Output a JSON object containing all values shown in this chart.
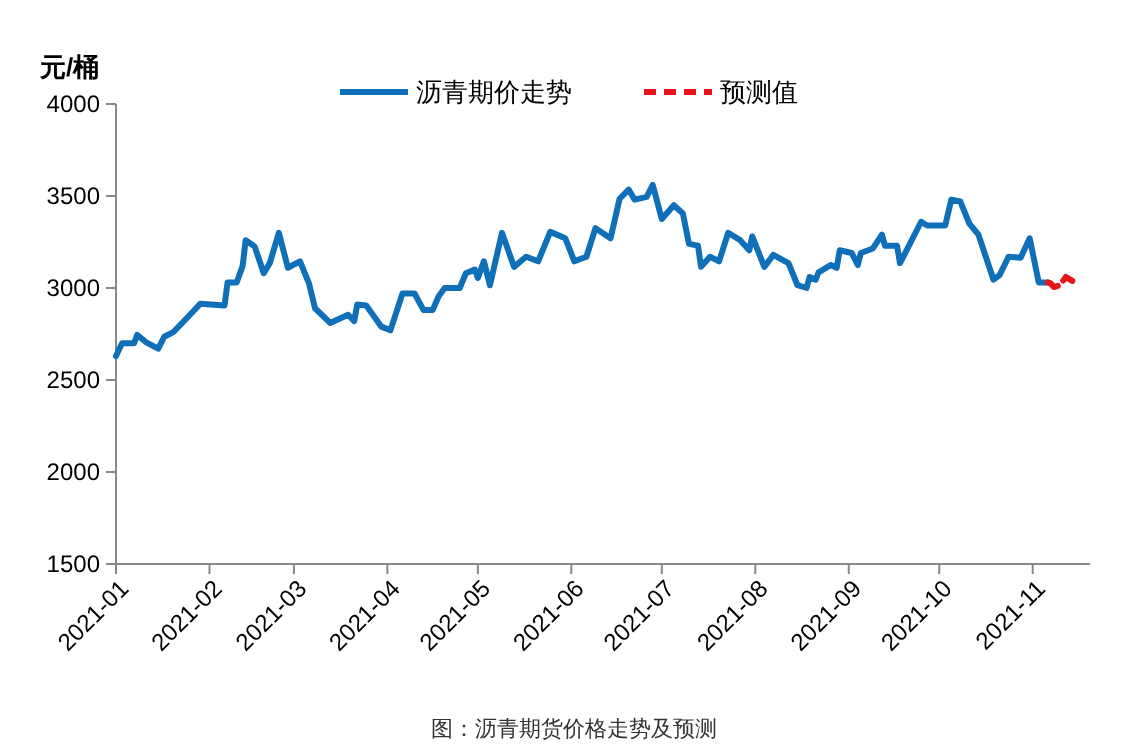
{
  "chart_data": {
    "type": "line",
    "ylabel": "元/桶",
    "annotations": [
      "图：沥青期货价格走势及预测"
    ],
    "xlim": [
      "2021-01-01",
      "2021-11-20"
    ],
    "xticks": [
      {
        "value": "2021-01-01",
        "label": "2021-01"
      },
      {
        "value": "2021-02-01",
        "label": "2021-02"
      },
      {
        "value": "2021-03-01",
        "label": "2021-03"
      },
      {
        "value": "2021-04-01",
        "label": "2021-04"
      },
      {
        "value": "2021-05-01",
        "label": "2021-05"
      },
      {
        "value": "2021-06-01",
        "label": "2021-06"
      },
      {
        "value": "2021-07-01",
        "label": "2021-07"
      },
      {
        "value": "2021-08-01",
        "label": "2021-08"
      },
      {
        "value": "2021-09-01",
        "label": "2021-09"
      },
      {
        "value": "2021-10-01",
        "label": "2021-10"
      },
      {
        "value": "2021-11-01",
        "label": "2021-11"
      }
    ],
    "ylim": [
      1500,
      4000
    ],
    "yticks": [
      1500,
      2000,
      2500,
      3000,
      3500,
      4000
    ],
    "grid": false,
    "legend": "top",
    "series": [
      {
        "name": "沥青期价走势",
        "color": "#0f6fb8",
        "line_style": "solid",
        "x": [
          "2021-01-01",
          "2021-01-03",
          "2021-01-07",
          "2021-01-08",
          "2021-01-11",
          "2021-01-15",
          "2021-01-17",
          "2021-01-20",
          "2021-01-25",
          "2021-01-29",
          "2021-02-06",
          "2021-02-07",
          "2021-02-10",
          "2021-02-12",
          "2021-02-13",
          "2021-02-16",
          "2021-02-19",
          "2021-02-21",
          "2021-02-24",
          "2021-02-27",
          "2021-03-03",
          "2021-03-06",
          "2021-03-08",
          "2021-03-13",
          "2021-03-19",
          "2021-03-21",
          "2021-03-22",
          "2021-03-25",
          "2021-03-30",
          "2021-04-02",
          "2021-04-06",
          "2021-04-10",
          "2021-04-13",
          "2021-04-16",
          "2021-04-18",
          "2021-04-20",
          "2021-04-25",
          "2021-04-27",
          "2021-04-30",
          "2021-05-01",
          "2021-05-03",
          "2021-05-05",
          "2021-05-09",
          "2021-05-13",
          "2021-05-17",
          "2021-05-21",
          "2021-05-25",
          "2021-05-30",
          "2021-06-02",
          "2021-06-06",
          "2021-06-09",
          "2021-06-14",
          "2021-06-17",
          "2021-06-20",
          "2021-06-22",
          "2021-06-26",
          "2021-06-28",
          "2021-07-01",
          "2021-07-05",
          "2021-07-08",
          "2021-07-10",
          "2021-07-13",
          "2021-07-14",
          "2021-07-17",
          "2021-07-20",
          "2021-07-23",
          "2021-07-27",
          "2021-07-30",
          "2021-07-31",
          "2021-08-04",
          "2021-08-07",
          "2021-08-12",
          "2021-08-15",
          "2021-08-18",
          "2021-08-19",
          "2021-08-21",
          "2021-08-22",
          "2021-08-26",
          "2021-08-28",
          "2021-08-29",
          "2021-09-02",
          "2021-09-04",
          "2021-09-05",
          "2021-09-09",
          "2021-09-12",
          "2021-09-13",
          "2021-09-17",
          "2021-09-18",
          "2021-09-25",
          "2021-09-27",
          "2021-10-03",
          "2021-10-05",
          "2021-10-08",
          "2021-10-11",
          "2021-10-14",
          "2021-10-19",
          "2021-10-21",
          "2021-10-24",
          "2021-10-28",
          "2021-10-31",
          "2021-11-03",
          "2021-11-06"
        ],
        "values": [
          2630,
          2700,
          2700,
          2745,
          2705,
          2670,
          2735,
          2760,
          2845,
          2915,
          2905,
          3030,
          3030,
          3120,
          3260,
          3225,
          3080,
          3135,
          3300,
          3110,
          3145,
          3025,
          2890,
          2810,
          2855,
          2820,
          2910,
          2905,
          2790,
          2770,
          2970,
          2970,
          2880,
          2880,
          2955,
          3000,
          3000,
          3080,
          3100,
          3055,
          3145,
          3015,
          3300,
          3115,
          3170,
          3145,
          3305,
          3270,
          3145,
          3170,
          3325,
          3270,
          3485,
          3535,
          3480,
          3495,
          3560,
          3375,
          3450,
          3405,
          3240,
          3230,
          3115,
          3170,
          3145,
          3300,
          3260,
          3205,
          3280,
          3115,
          3180,
          3135,
          3015,
          3000,
          3060,
          3045,
          3085,
          3125,
          3110,
          3205,
          3190,
          3125,
          3190,
          3215,
          3290,
          3230,
          3230,
          3135,
          3360,
          3340,
          3340,
          3480,
          3470,
          3350,
          3290,
          3045,
          3070,
          3170,
          3165,
          3270,
          3030,
          3030
        ]
      },
      {
        "name": "预测值",
        "color": "#e8141b",
        "line_style": "dashed",
        "x": [
          "2021-11-06",
          "2021-11-07",
          "2021-11-08",
          "2021-11-10",
          "2021-11-12",
          "2021-11-15"
        ],
        "values": [
          3030,
          3025,
          3005,
          3015,
          3060,
          3030
        ]
      }
    ]
  }
}
